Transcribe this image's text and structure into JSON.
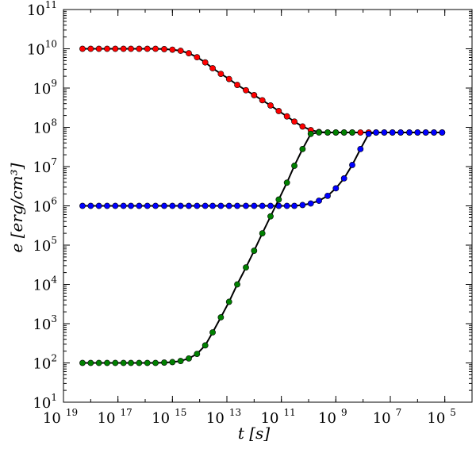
{
  "chart_data": {
    "type": "line",
    "title": "",
    "xlabel": "t [s]",
    "ylabel": "e [erg/cm³]",
    "x_scale": "log",
    "y_scale": "log",
    "xlim": [
      1e-19,
      0.0001
    ],
    "ylim": [
      10,
      100000000000.0
    ],
    "x_ticks": [
      {
        "base": "10",
        "exp": "19"
      },
      {
        "base": "10",
        "exp": "17"
      },
      {
        "base": "10",
        "exp": "15"
      },
      {
        "base": "10",
        "exp": "13"
      },
      {
        "base": "10",
        "exp": "11"
      },
      {
        "base": "10",
        "exp": "9"
      },
      {
        "base": "10",
        "exp": "7"
      },
      {
        "base": "10",
        "exp": "5"
      }
    ],
    "y_ticks": [
      {
        "base": "10",
        "exp": "1"
      },
      {
        "base": "10",
        "exp": "2"
      },
      {
        "base": "10",
        "exp": "3"
      },
      {
        "base": "10",
        "exp": "4"
      },
      {
        "base": "10",
        "exp": "5"
      },
      {
        "base": "10",
        "exp": "6"
      },
      {
        "base": "10",
        "exp": "7"
      },
      {
        "base": "10",
        "exp": "8"
      },
      {
        "base": "10",
        "exp": "9"
      },
      {
        "base": "10",
        "exp": "10"
      },
      {
        "base": "10",
        "exp": "11"
      }
    ],
    "grid": false,
    "legend": "none",
    "series": [
      {
        "color": "#ff0000",
        "x": [
          5e-19,
          1e-18,
          2e-18,
          4e-18,
          8e-18,
          1.6e-17,
          3e-17,
          6e-17,
          1.2e-16,
          2.4e-16,
          5e-16,
          1e-15,
          2e-15,
          4e-15,
          8e-15,
          1.6e-14,
          3e-14,
          6e-14,
          1.2e-13,
          2.4e-13,
          5e-13,
          1e-12,
          2e-12,
          4e-12,
          8e-12,
          1.6e-11,
          3e-11,
          6e-11,
          1.2e-10,
          2.4e-10,
          5e-10,
          1e-09,
          2e-09,
          4e-09,
          8e-09,
          1.6e-08,
          3e-08,
          6e-08,
          1.2e-07,
          2.4e-07,
          5e-07,
          1e-06,
          2e-06,
          4e-06,
          8e-06
        ],
        "y": [
          10000000000.0,
          10000000000.0,
          10000000000.0,
          10000000000.0,
          10000000000.0,
          10000000000.0,
          10000000000.0,
          10000000000.0,
          10000000000.0,
          10000000000.0,
          9800000000.0,
          9500000000.0,
          8900000000.0,
          7700000000.0,
          6100000000.0,
          4500000000.0,
          3200000000.0,
          2300000000.0,
          1700000000.0,
          1200000000.0,
          880000000.0,
          660000000.0,
          490000000.0,
          360000000.0,
          260000000.0,
          190000000.0,
          140000000.0,
          105000000.0,
          85000000.0,
          76000000.0,
          74000000.0,
          74000000.0,
          74000000.0,
          74000000.0,
          74000000.0,
          74000000.0,
          74000000.0,
          74000000.0,
          74000000.0,
          74000000.0,
          74000000.0,
          74000000.0,
          74000000.0,
          74000000.0,
          74000000.0
        ]
      },
      {
        "color": "#0000ff",
        "x": [
          5e-19,
          1e-18,
          2e-18,
          4e-18,
          8e-18,
          1.6e-17,
          3e-17,
          6e-17,
          1.2e-16,
          2.4e-16,
          5e-16,
          1e-15,
          2e-15,
          4e-15,
          8e-15,
          1.6e-14,
          3e-14,
          6e-14,
          1.2e-13,
          2.4e-13,
          5e-13,
          1e-12,
          2e-12,
          4e-12,
          8e-12,
          1.6e-11,
          3e-11,
          6e-11,
          1.2e-10,
          2.4e-10,
          5e-10,
          1e-09,
          2e-09,
          4e-09,
          8e-09,
          1.6e-08,
          3e-08,
          6e-08,
          1.2e-07,
          2.4e-07,
          5e-07,
          1e-06,
          2e-06,
          4e-06,
          8e-06
        ],
        "y": [
          1000000.0,
          1000000.0,
          1000000.0,
          1000000.0,
          1000000.0,
          1000000.0,
          1000000.0,
          1000000.0,
          1000000.0,
          1000000.0,
          1000000.0,
          1000000.0,
          1000000.0,
          1000000.0,
          1000000.0,
          1000000.0,
          1000000.0,
          1000000.0,
          1000000.0,
          1000000.0,
          1000000.0,
          1000000.0,
          1000000.0,
          1000000.0,
          1000000.0,
          1000000.0,
          1000000.0,
          1050000.0,
          1150000.0,
          1350000.0,
          1800000.0,
          2800000.0,
          5000000.0,
          11000000.0,
          28000000.0,
          68000000.0,
          74000000.0,
          74000000.0,
          74000000.0,
          74000000.0,
          74000000.0,
          74000000.0,
          74000000.0,
          74000000.0,
          74000000.0
        ]
      },
      {
        "color": "#008000",
        "x": [
          5e-19,
          1e-18,
          2e-18,
          4e-18,
          8e-18,
          1.6e-17,
          3e-17,
          6e-17,
          1.2e-16,
          2.4e-16,
          5e-16,
          1e-15,
          2e-15,
          4e-15,
          8e-15,
          1.6e-14,
          3e-14,
          6e-14,
          1.2e-13,
          2.4e-13,
          5e-13,
          1e-12,
          2e-12,
          4e-12,
          8e-12,
          1.6e-11,
          3e-11,
          6e-11,
          1.2e-10,
          2.4e-10,
          5e-10,
          1e-09,
          2e-09,
          4e-09
        ],
        "y": [
          100,
          100,
          100,
          100,
          100,
          100,
          100,
          100,
          100,
          100,
          102,
          105,
          112,
          130,
          170,
          280,
          600,
          1450,
          3600,
          10000.0,
          27000.0,
          72000.0,
          200000.0,
          540000.0,
          1450000.0,
          3900000.0,
          10500000.0,
          28000000.0,
          68000000.0,
          74000000.0,
          74000000.0,
          74000000.0,
          74000000.0,
          74000000.0
        ]
      }
    ]
  }
}
